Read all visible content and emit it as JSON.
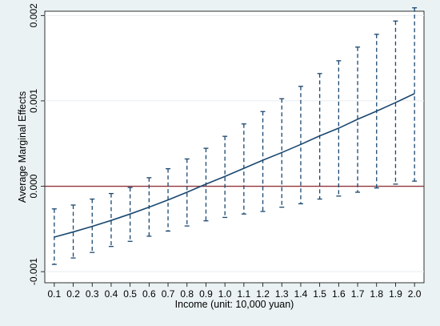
{
  "chart_data": {
    "type": "line",
    "title": "",
    "xlabel": "Income (unit: 10,000 yuan)",
    "ylabel": "Average Marginal Effects",
    "x": [
      0.1,
      0.2,
      0.3,
      0.4,
      0.5,
      0.6,
      0.7,
      0.8,
      0.9,
      1.0,
      1.1,
      1.2,
      1.3,
      1.4,
      1.5,
      1.6,
      1.7,
      1.8,
      1.9,
      2.0
    ],
    "x_tick_labels": [
      "0.1",
      "0.2",
      "0.3",
      "0.4",
      "0.5",
      "0.6",
      "0.7",
      "0.8",
      "0.9",
      "1.0",
      "1.1",
      "1.2",
      "1.3",
      "1.4",
      "1.5",
      "1.6",
      "1.7",
      "1.8",
      "1.9",
      "2.0"
    ],
    "y_ticks": [
      -0.001,
      0,
      0.001,
      0.002
    ],
    "y_tick_labels": [
      "-0.001",
      "0.000",
      "0.001",
      "0.002"
    ],
    "ylim": [
      -0.00113,
      0.00205
    ],
    "xlim": [
      0.05,
      2.05
    ],
    "grid": true,
    "series": [
      {
        "values": [
          -0.000595,
          -0.000535,
          -0.00047,
          -0.0004,
          -0.000325,
          -0.000245,
          -0.00016,
          -7e-05,
          2.5e-05,
          0.000115,
          0.00021,
          0.000305,
          0.000395,
          0.00049,
          0.00059,
          0.00068,
          0.000785,
          0.00088,
          0.00098,
          0.001085
        ],
        "ci_lower": [
          -0.000915,
          -0.00084,
          -0.000775,
          -0.000705,
          -0.000645,
          -0.000585,
          -0.000525,
          -0.000465,
          -0.000405,
          -0.000365,
          -0.000325,
          -0.000295,
          -0.000245,
          -0.000205,
          -0.00015,
          -0.000115,
          -7e-05,
          -2e-05,
          2.5e-05,
          6e-05
        ],
        "ci_upper": [
          -0.000265,
          -0.00022,
          -0.00015,
          -8.5e-05,
          -1.5e-05,
          0.0001,
          0.000205,
          0.00032,
          0.000445,
          0.000585,
          0.00073,
          0.000875,
          0.001025,
          0.00117,
          0.00132,
          0.00147,
          0.00163,
          0.00178,
          0.001935,
          0.00209
        ]
      }
    ],
    "reference_line": {
      "y": 0
    },
    "colors": {
      "background": "#eaf2f3",
      "plot_background": "#ffffff",
      "line": "#1a476f",
      "reference": "#90353b",
      "grid": "#e8eef0"
    }
  }
}
